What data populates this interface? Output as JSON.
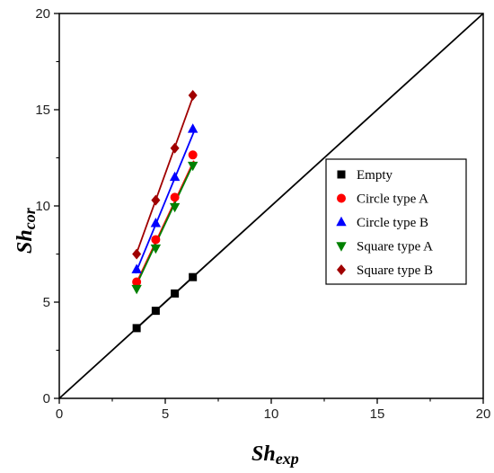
{
  "chart_data": {
    "type": "scatter",
    "xlabel": {
      "main": "Sh",
      "sub": "exp"
    },
    "ylabel": {
      "main": "Sh",
      "sub": "cor"
    },
    "xlim": [
      0,
      20
    ],
    "ylim": [
      0,
      20
    ],
    "xticks": [
      "0",
      "5",
      "10",
      "15",
      "20"
    ],
    "yticks": [
      "0",
      "5",
      "10",
      "15",
      "20"
    ],
    "grid": false,
    "legend_position": "right",
    "reference_line": {
      "x": [
        0,
        20
      ],
      "y": [
        0,
        20
      ],
      "color": "#000000"
    },
    "series": [
      {
        "name": "Empty",
        "marker": "square",
        "color": "#000000",
        "x": [
          3.65,
          4.55,
          5.45,
          6.3
        ],
        "y": [
          3.65,
          4.55,
          5.45,
          6.3
        ],
        "fit": [
          [
            3.6,
            3.6
          ],
          [
            6.35,
            6.35
          ]
        ]
      },
      {
        "name": "Circle type A",
        "marker": "circle",
        "color": "#ff0000",
        "x": [
          3.65,
          4.55,
          5.45,
          6.3
        ],
        "y": [
          6.05,
          8.25,
          10.45,
          12.65
        ],
        "fit": [
          [
            3.6,
            5.9
          ],
          [
            6.35,
            12.35
          ]
        ]
      },
      {
        "name": "Circle type B",
        "marker": "triangle-up",
        "color": "#0000ff",
        "x": [
          3.65,
          4.55,
          5.45,
          6.3
        ],
        "y": [
          6.7,
          9.1,
          11.5,
          14.0
        ],
        "fit": [
          [
            3.6,
            6.5
          ],
          [
            6.35,
            13.85
          ]
        ]
      },
      {
        "name": "Square type A",
        "marker": "triangle-down",
        "color": "#008000",
        "x": [
          3.65,
          4.55,
          5.45,
          6.3
        ],
        "y": [
          5.7,
          7.8,
          9.95,
          12.1
        ],
        "fit": [
          [
            3.6,
            5.8
          ],
          [
            6.35,
            12.25
          ]
        ]
      },
      {
        "name": "Square type B",
        "marker": "diamond",
        "color": "#a00000",
        "x": [
          3.65,
          4.55,
          5.45,
          6.3
        ],
        "y": [
          7.5,
          10.3,
          13.0,
          15.75
        ],
        "fit": [
          [
            3.6,
            7.4
          ],
          [
            6.35,
            15.8
          ]
        ]
      }
    ]
  }
}
